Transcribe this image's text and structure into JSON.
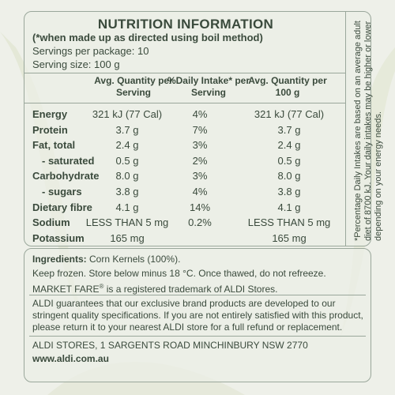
{
  "nutrition": {
    "title": "NUTRITION INFORMATION",
    "subtitle": "(*when made up as directed using boil method)",
    "servings_per_package": "Servings per package: 10",
    "serving_size": "Serving size: 100 g",
    "headers": {
      "avg_per_serving": "Avg. Quantity per Serving",
      "daily_intake": "%Daily Intake* per Serving",
      "avg_per_100g": "Avg. Quantity per 100 g"
    },
    "rows": [
      {
        "name": "Energy",
        "per_serving": "321 kJ (77 Cal)",
        "daily": "4%",
        "per_100g": "321 kJ (77 Cal)",
        "bold": true
      },
      {
        "name": "Protein",
        "per_serving": "3.7 g",
        "daily": "7%",
        "per_100g": "3.7 g",
        "bold": true
      },
      {
        "name": "Fat, total",
        "per_serving": "2.4 g",
        "daily": "3%",
        "per_100g": "2.4 g",
        "bold": true
      },
      {
        "name": "- saturated",
        "per_serving": "0.5 g",
        "daily": "2%",
        "per_100g": "0.5 g",
        "bold": true
      },
      {
        "name": "Carbohydrate",
        "per_serving": "8.0 g",
        "daily": "3%",
        "per_100g": "8.0 g",
        "bold": true
      },
      {
        "name": "- sugars",
        "per_serving": "3.8 g",
        "daily": "4%",
        "per_100g": "3.8 g",
        "bold": true
      },
      {
        "name": "Dietary fibre",
        "per_serving": "4.1 g",
        "daily": "14%",
        "per_100g": "4.1 g",
        "bold": true
      },
      {
        "name": "Sodium",
        "per_serving": "LESS THAN 5 mg",
        "daily": "0.2%",
        "per_100g": "LESS THAN 5 mg",
        "bold": true
      },
      {
        "name": "Potassium",
        "per_serving": "165 mg",
        "daily": "",
        "per_100g": "165 mg",
        "bold": true
      }
    ],
    "footnote": "*Percentage Daily Intakes are based on an average adult diet of 8700 kJ. Your daily intakes may be higher or lower depending on your energy needs."
  },
  "info": {
    "ingredients_label": "Ingredients:",
    "ingredients_value": "Corn Kernels (100%).",
    "storage": "Keep frozen. Store below minus 18 °C. Once thawed, do not refreeze.",
    "trademark_brand": "MARKET FARE",
    "trademark_symbol": "®",
    "trademark_rest": "is a registered trademark of ALDI Stores.",
    "guarantee": "ALDI guarantees that our exclusive brand products are developed to our stringent quality specifications. If you are not entirely satisfied with this product, please return it to your nearest ALDI store for a full refund or replacement.",
    "address": "ALDI STORES, 1 SARGENTS ROAD MINCHINBURY NSW 2770",
    "website": "www.aldi.com.au"
  },
  "colors": {
    "background": "#eef0e9",
    "text": "#3a4a3c",
    "border": "#9aa79b"
  }
}
